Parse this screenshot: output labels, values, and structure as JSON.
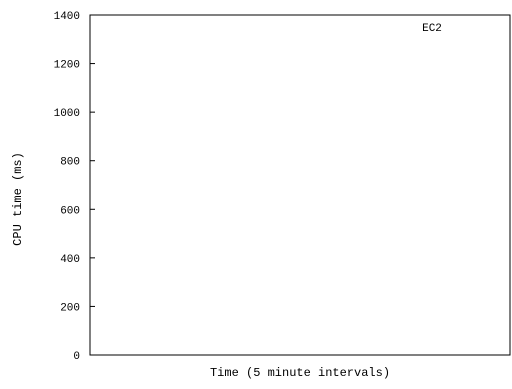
{
  "chart_data": {
    "type": "line",
    "title": "",
    "xlabel": "Time (5 minute intervals)",
    "ylabel": "CPU time (ms)",
    "ylim": [
      0,
      1400
    ],
    "yticks": [
      0,
      200,
      400,
      600,
      800,
      1000,
      1200,
      1400
    ],
    "ytick_labels": [
      "0",
      "200",
      "400",
      "600",
      "800",
      "1000",
      "1200",
      "1400"
    ],
    "grid": false,
    "legend_position": "top-right",
    "series": [
      {
        "name": "EC2",
        "values": []
      }
    ]
  }
}
